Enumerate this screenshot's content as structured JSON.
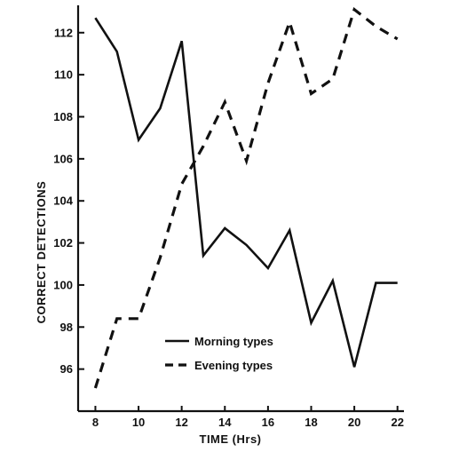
{
  "chart_data": {
    "type": "line",
    "title": "",
    "xlabel": "TIME (Hrs)",
    "ylabel": "CORRECT DETECTIONS",
    "x_ticks": [
      8,
      10,
      12,
      14,
      16,
      18,
      20,
      22
    ],
    "y_ticks": [
      96,
      98,
      100,
      102,
      104,
      106,
      108,
      110,
      112
    ],
    "xlim": [
      7.2,
      22.3
    ],
    "ylim": [
      94.0,
      113.3
    ],
    "grid": false,
    "legend_position": "lower-center",
    "series": [
      {
        "name": "Morning types",
        "line_style": "solid",
        "color": "#111111",
        "x": [
          8,
          9,
          10,
          11,
          12,
          13,
          14,
          15,
          16,
          17,
          18,
          19,
          20,
          21,
          22
        ],
        "y": [
          112.7,
          111.1,
          106.9,
          108.4,
          111.6,
          101.4,
          102.7,
          101.9,
          100.8,
          102.6,
          98.2,
          100.2,
          96.1,
          100.1,
          100.1
        ]
      },
      {
        "name": "Evening types",
        "line_style": "dashed",
        "color": "#111111",
        "x": [
          8,
          9,
          10,
          11,
          12,
          13,
          14,
          15,
          16,
          17,
          18,
          19,
          20,
          21,
          22
        ],
        "y": [
          95.1,
          98.4,
          98.4,
          101.3,
          104.8,
          106.6,
          108.7,
          105.9,
          109.6,
          112.5,
          109.1,
          109.8,
          113.1,
          112.3,
          111.7
        ]
      }
    ]
  }
}
